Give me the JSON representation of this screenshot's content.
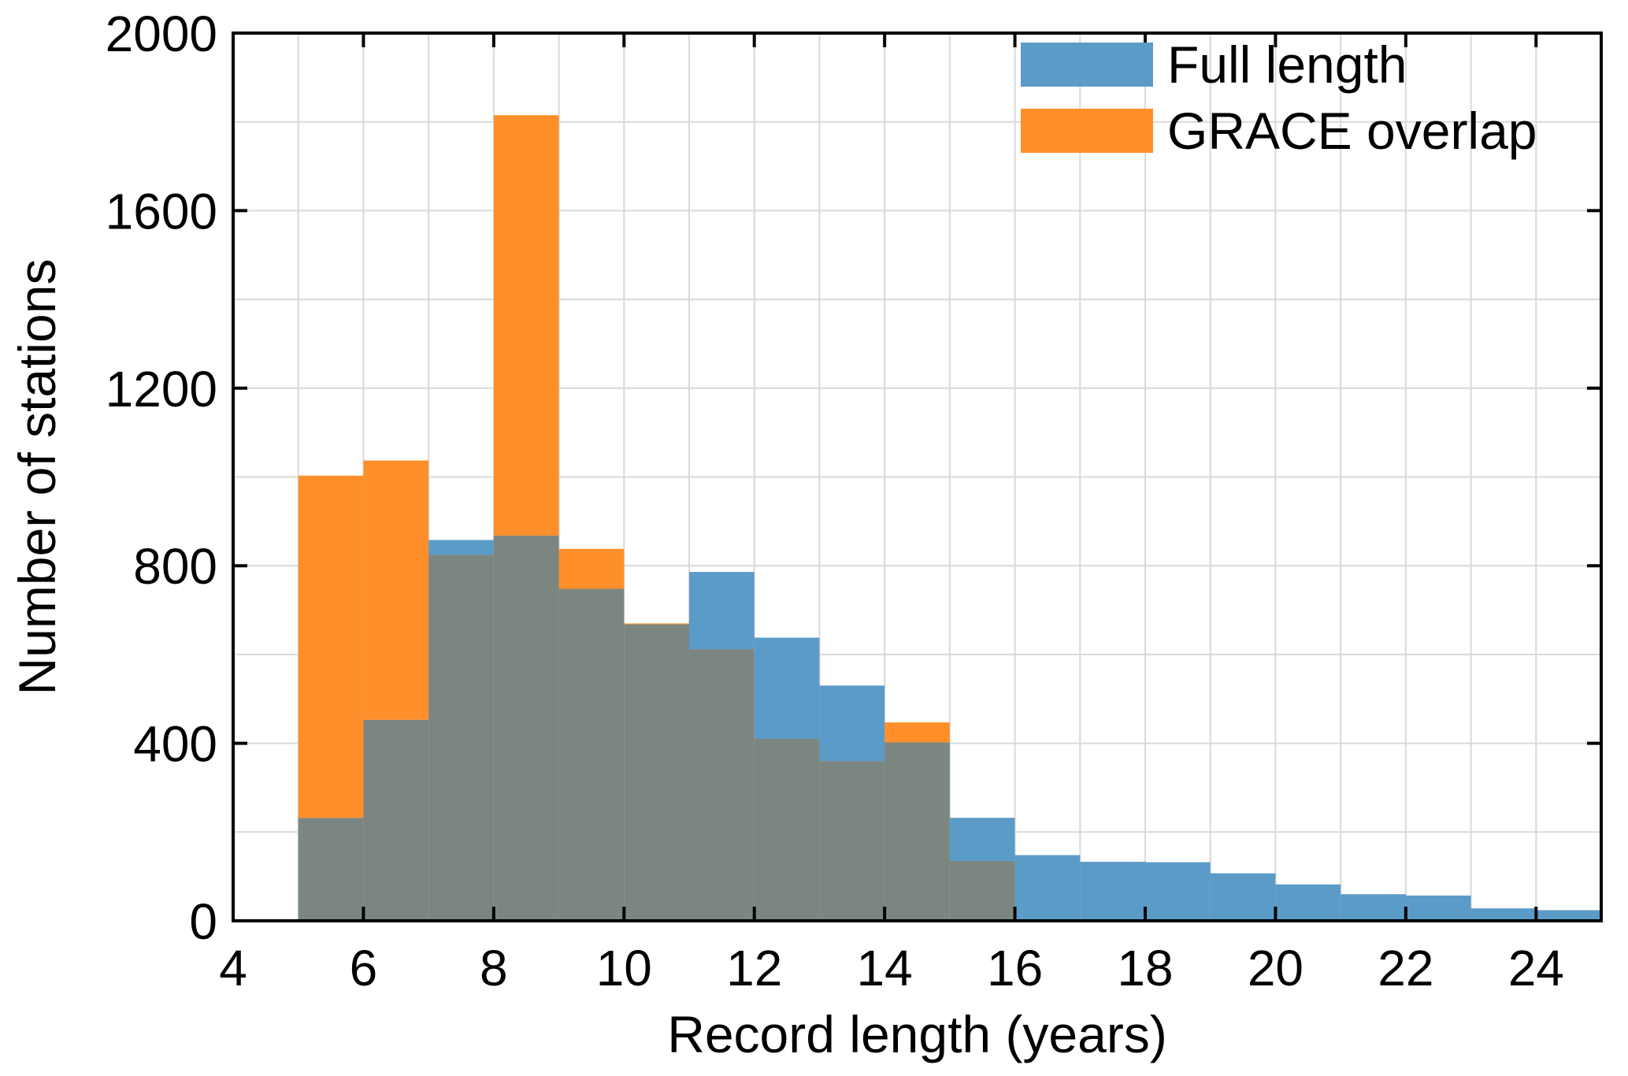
{
  "chart_data": {
    "type": "bar",
    "xlabel": "Record length (years)",
    "ylabel": "Number of stations",
    "xlim": [
      4,
      25
    ],
    "ylim": [
      0,
      2000
    ],
    "xticks": [
      4,
      6,
      8,
      10,
      12,
      14,
      16,
      18,
      20,
      22,
      24
    ],
    "yticks": [
      0,
      400,
      800,
      1200,
      1600,
      2000
    ],
    "bin_width": 1,
    "grid": true,
    "legend_position": "top-right",
    "bins": [
      5,
      6,
      7,
      8,
      9,
      10,
      11,
      12,
      13,
      14,
      15,
      16,
      17,
      18,
      19,
      20,
      21,
      22,
      23,
      24
    ],
    "series": [
      {
        "name": "Full length",
        "color": "#5b9bc8",
        "values": [
          232,
          453,
          858,
          868,
          748,
          668,
          786,
          638,
          530,
          402,
          232,
          148,
          133,
          132,
          107,
          82,
          60,
          57,
          28,
          24
        ]
      },
      {
        "name": "GRACE overlap",
        "color": "#ff8f2a",
        "values": [
          1003,
          1037,
          825,
          1815,
          838,
          670,
          612,
          410,
          360,
          447,
          135,
          0,
          0,
          0,
          0,
          0,
          0,
          0,
          0,
          0
        ]
      }
    ],
    "overlap_color": "#7c8680"
  }
}
